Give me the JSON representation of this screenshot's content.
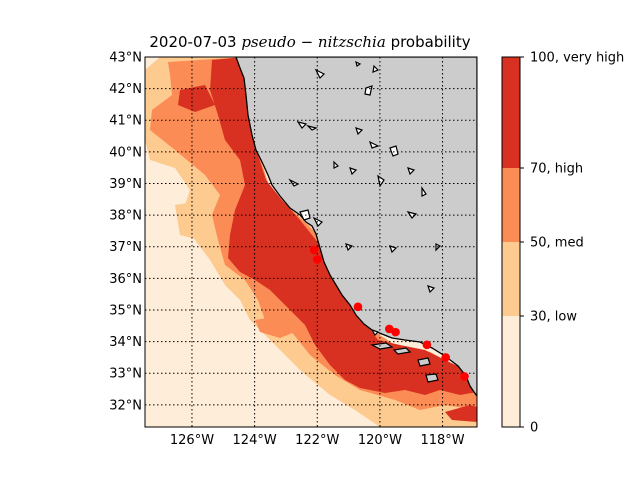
{
  "title": {
    "date": "2020-07-03",
    "species": "pseudo − nitzschia",
    "suffix": "probability"
  },
  "map": {
    "lon_range": [
      -127.5,
      -116.9
    ],
    "lat_range": [
      31.3,
      43.0
    ],
    "lon_ticks": [
      {
        "v": -126,
        "label": "126°W"
      },
      {
        "v": -124,
        "label": "124°W"
      },
      {
        "v": -122,
        "label": "122°W"
      },
      {
        "v": -120,
        "label": "120°W"
      },
      {
        "v": -118,
        "label": "118°W"
      }
    ],
    "lat_ticks": [
      {
        "v": 32,
        "label": "32°N"
      },
      {
        "v": 33,
        "label": "33°N"
      },
      {
        "v": 34,
        "label": "34°N"
      },
      {
        "v": 35,
        "label": "35°N"
      },
      {
        "v": 36,
        "label": "36°N"
      },
      {
        "v": 37,
        "label": "37°N"
      },
      {
        "v": 38,
        "label": "38°N"
      },
      {
        "v": 39,
        "label": "39°N"
      },
      {
        "v": 40,
        "label": "40°N"
      },
      {
        "v": 41,
        "label": "41°N"
      },
      {
        "v": 42,
        "label": "42°N"
      },
      {
        "v": 43,
        "label": "43°N"
      }
    ],
    "gridlines": "dotted",
    "land_color": "#cccccc",
    "stations": [
      {
        "lon": -122.1,
        "lat": 36.9
      },
      {
        "lon": -122.0,
        "lat": 36.6
      },
      {
        "lon": -120.7,
        "lat": 35.1
      },
      {
        "lon": -119.7,
        "lat": 34.4
      },
      {
        "lon": -119.5,
        "lat": 34.3
      },
      {
        "lon": -118.5,
        "lat": 33.9
      },
      {
        "lon": -117.9,
        "lat": 33.5
      },
      {
        "lon": -117.3,
        "lat": 32.9
      }
    ],
    "station_color": "#ff0000"
  },
  "colorbar": {
    "levels": [
      {
        "from": 0,
        "to": 30,
        "color": "#feedd9"
      },
      {
        "from": 30,
        "to": 50,
        "color": "#fdca8f"
      },
      {
        "from": 50,
        "to": 70,
        "color": "#fc8c55"
      },
      {
        "from": 70,
        "to": 100,
        "color": "#d93121"
      }
    ],
    "tick_labels": [
      {
        "v": 0,
        "label": "0"
      },
      {
        "v": 30,
        "label": "30, low"
      },
      {
        "v": 50,
        "label": "50, med"
      },
      {
        "v": 70,
        "label": "70, high"
      },
      {
        "v": 100,
        "label": "100, very high"
      }
    ]
  }
}
